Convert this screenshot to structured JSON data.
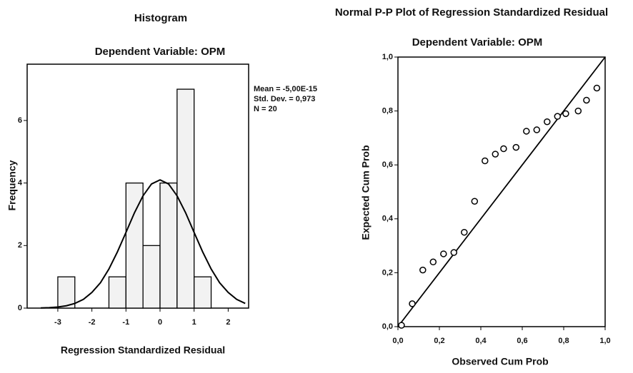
{
  "chart_data": [
    {
      "type": "histogram",
      "title": "Histogram",
      "subtitle": "Dependent Variable: OPM",
      "xlabel": "Regression Standardized Residual",
      "ylabel": "Frequency",
      "bins": [
        -3,
        -2.5,
        -2,
        -1.5,
        -1,
        -0.5,
        0,
        0.5,
        1,
        1.5
      ],
      "values": [
        1,
        0,
        0,
        1,
        4,
        2,
        4,
        7,
        1
      ],
      "color": "#f2f2f2",
      "normal_curve": {
        "x": [
          -3.5,
          -3.25,
          -3,
          -2.75,
          -2.5,
          -2.25,
          -2,
          -1.75,
          -1.5,
          -1.25,
          -1,
          -0.75,
          -0.5,
          -0.25,
          0,
          0.25,
          0.5,
          0.75,
          1,
          1.25,
          1.5,
          1.75,
          2,
          2.25,
          2.5
        ],
        "y": [
          0.006,
          0.015,
          0.035,
          0.075,
          0.15,
          0.28,
          0.5,
          0.81,
          1.25,
          1.8,
          2.42,
          3.05,
          3.59,
          3.97,
          4.1,
          3.97,
          3.59,
          3.05,
          2.42,
          1.8,
          1.25,
          0.81,
          0.5,
          0.28,
          0.15
        ]
      },
      "stats": [
        "Mean = -5,00E-15",
        "Std. Dev. = 0,973",
        "N = 20"
      ],
      "xlim": [
        -3.9,
        2.6
      ],
      "xticks": [
        -3,
        -2,
        -1,
        0,
        1,
        2
      ],
      "ylim": [
        0,
        7.8
      ],
      "yticks": [
        0,
        2,
        4,
        6
      ]
    },
    {
      "type": "scatter",
      "title": "Normal P-P Plot of Regression Standardized Residual",
      "subtitle": "Dependent Variable: OPM",
      "xlabel": "Observed Cum Prob",
      "ylabel": "Expected Cum Prob",
      "x": [
        0.017,
        0.069,
        0.12,
        0.17,
        0.22,
        0.27,
        0.32,
        0.37,
        0.42,
        0.47,
        0.51,
        0.57,
        0.62,
        0.67,
        0.72,
        0.77,
        0.81,
        0.87,
        0.91,
        0.96
      ],
      "values": [
        0.005,
        0.085,
        0.21,
        0.24,
        0.27,
        0.275,
        0.35,
        0.465,
        0.615,
        0.64,
        0.66,
        0.665,
        0.725,
        0.73,
        0.76,
        0.78,
        0.79,
        0.8,
        0.84,
        0.885
      ],
      "xlim": [
        0,
        1
      ],
      "ylim": [
        0,
        1
      ],
      "xticks": [
        {
          "value": 0,
          "label": "0,0"
        },
        {
          "value": 0.2,
          "label": "0,2"
        },
        {
          "value": 0.4,
          "label": "0,4"
        },
        {
          "value": 0.6,
          "label": "0,6"
        },
        {
          "value": 0.8,
          "label": "0,8"
        },
        {
          "value": 1,
          "label": "1,0"
        }
      ],
      "yticks": [
        {
          "value": 0,
          "label": "0,0"
        },
        {
          "value": 0.2,
          "label": "0,2"
        },
        {
          "value": 0.4,
          "label": "0,4"
        },
        {
          "value": 0.6,
          "label": "0,6"
        },
        {
          "value": 0.8,
          "label": "0,8"
        },
        {
          "value": 1,
          "label": "1,0"
        }
      ]
    }
  ]
}
